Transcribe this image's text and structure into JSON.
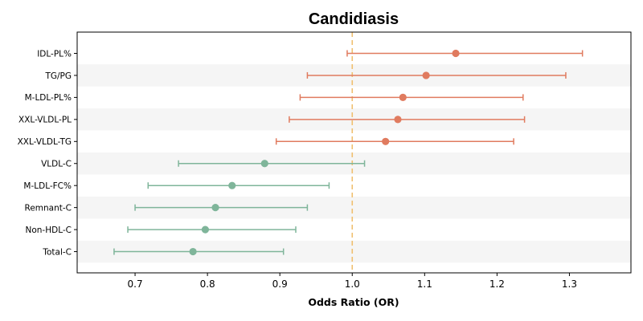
{
  "chart_data": {
    "type": "forest",
    "title": "Candidiasis",
    "xlabel": "Odds Ratio (OR)",
    "ylabel": "",
    "xlim": [
      0.62,
      1.385
    ],
    "xticks": [
      0.7,
      0.8,
      0.9,
      1.0,
      1.1,
      1.2,
      1.3
    ],
    "xtick_labels": [
      "0.7",
      "0.8",
      "0.9",
      "1.0",
      "1.1",
      "1.2",
      "1.3"
    ],
    "reference_line": 1.0,
    "grid": false,
    "alternating_row_shading": true,
    "colors": {
      "risk": "#e07b5f",
      "protective": "#7fb59a",
      "reference": "#f0c070",
      "band": "#f5f5f5"
    },
    "rows": [
      {
        "label": "IDL-PL%",
        "or": 1.143,
        "lower": 0.993,
        "upper": 1.318,
        "group": "risk"
      },
      {
        "label": "TG/PG",
        "or": 1.102,
        "lower": 0.938,
        "upper": 1.295,
        "group": "risk"
      },
      {
        "label": "M-LDL-PL%",
        "or": 1.07,
        "lower": 0.928,
        "upper": 1.236,
        "group": "risk"
      },
      {
        "label": "XXL-VLDL-PL",
        "or": 1.063,
        "lower": 0.913,
        "upper": 1.238,
        "group": "risk"
      },
      {
        "label": "XXL-VLDL-TG",
        "or": 1.046,
        "lower": 0.895,
        "upper": 1.223,
        "group": "risk"
      },
      {
        "label": "VLDL-C",
        "or": 0.879,
        "lower": 0.76,
        "upper": 1.017,
        "group": "protective"
      },
      {
        "label": "M-LDL-FC%",
        "or": 0.834,
        "lower": 0.718,
        "upper": 0.968,
        "group": "protective"
      },
      {
        "label": "Remnant-C",
        "or": 0.811,
        "lower": 0.7,
        "upper": 0.938,
        "group": "protective"
      },
      {
        "label": "Non-HDL-C",
        "or": 0.797,
        "lower": 0.69,
        "upper": 0.922,
        "group": "protective"
      },
      {
        "label": "Total-C",
        "or": 0.78,
        "lower": 0.671,
        "upper": 0.905,
        "group": "protective"
      }
    ]
  }
}
